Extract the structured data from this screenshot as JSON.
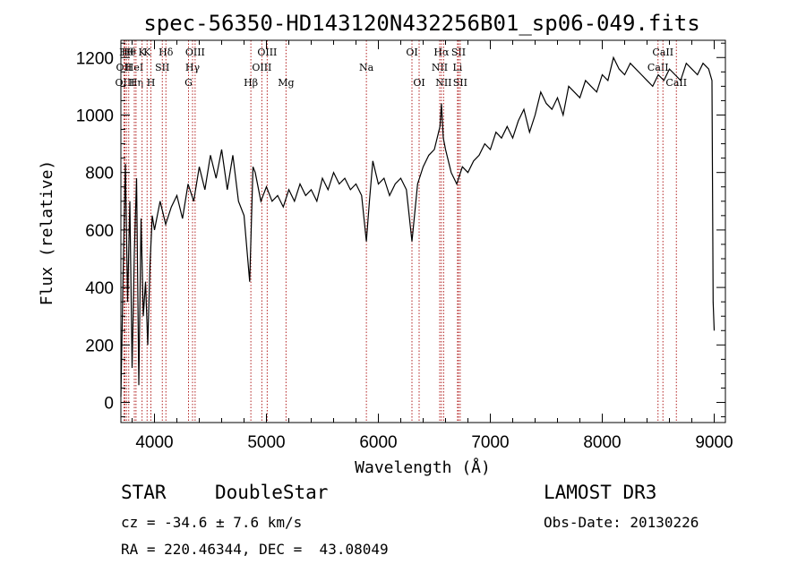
{
  "chart_data": {
    "type": "line",
    "title": "spec-56350-HD143120N432256B01_sp06-049.fits",
    "xlabel": "Wavelength (Å)",
    "ylabel": "Flux (relative)",
    "xlim": [
      3700,
      9100
    ],
    "ylim": [
      -70,
      1260
    ],
    "xticks": [
      4000,
      5000,
      6000,
      7000,
      8000,
      9000
    ],
    "yticks": [
      0,
      200,
      400,
      600,
      800,
      1000,
      1200
    ],
    "grid": false,
    "series": [
      {
        "x": [
          3700,
          3720,
          3740,
          3760,
          3780,
          3800,
          3820,
          3840,
          3860,
          3880,
          3900,
          3920,
          3940,
          3960,
          3980,
          4000,
          4050,
          4100,
          4150,
          4200,
          4250,
          4300,
          4350,
          4400,
          4450,
          4500,
          4550,
          4600,
          4650,
          4700,
          4750,
          4800,
          4850,
          4861,
          4880,
          4900,
          4950,
          5000,
          5050,
          5100,
          5150,
          5200,
          5250,
          5300,
          5350,
          5400,
          5450,
          5500,
          5550,
          5600,
          5650,
          5700,
          5750,
          5800,
          5850,
          5893,
          5920,
          5950,
          6000,
          6050,
          6100,
          6150,
          6200,
          6250,
          6300,
          6350,
          6400,
          6450,
          6500,
          6550,
          6563,
          6580,
          6600,
          6650,
          6700,
          6750,
          6800,
          6850,
          6900,
          6950,
          7000,
          7050,
          7100,
          7150,
          7200,
          7250,
          7300,
          7350,
          7400,
          7450,
          7500,
          7550,
          7600,
          7650,
          7700,
          7750,
          7800,
          7850,
          7900,
          7950,
          8000,
          8050,
          8100,
          8150,
          8200,
          8250,
          8300,
          8350,
          8400,
          8450,
          8500,
          8550,
          8600,
          8650,
          8700,
          8750,
          8800,
          8850,
          8900,
          8950,
          8980,
          8990,
          9000
        ],
        "y": [
          20,
          450,
          830,
          350,
          700,
          120,
          520,
          780,
          60,
          640,
          300,
          420,
          200,
          480,
          650,
          600,
          700,
          620,
          680,
          720,
          640,
          760,
          700,
          820,
          740,
          860,
          780,
          880,
          740,
          860,
          700,
          650,
          420,
          560,
          820,
          800,
          700,
          750,
          700,
          720,
          680,
          740,
          700,
          760,
          720,
          740,
          700,
          780,
          740,
          800,
          760,
          780,
          740,
          760,
          720,
          560,
          700,
          840,
          760,
          780,
          720,
          760,
          780,
          740,
          560,
          760,
          820,
          860,
          880,
          960,
          1040,
          920,
          880,
          800,
          760,
          820,
          800,
          840,
          860,
          900,
          880,
          940,
          920,
          960,
          920,
          980,
          1020,
          940,
          1000,
          1080,
          1040,
          1020,
          1060,
          1000,
          1100,
          1080,
          1060,
          1120,
          1100,
          1080,
          1140,
          1120,
          1200,
          1160,
          1140,
          1180,
          1160,
          1140,
          1120,
          1100,
          1140,
          1120,
          1160,
          1140,
          1120,
          1180,
          1160,
          1140,
          1180,
          1160,
          1120,
          350,
          250
        ]
      }
    ],
    "lines": [
      {
        "x": 3727,
        "row": 1,
        "label": "OII"
      },
      {
        "x": 3736,
        "row": 2,
        "label": "OIII"
      },
      {
        "x": 3750,
        "row": 0,
        "label": "Hθ"
      },
      {
        "x": 3770,
        "row": 0,
        "label": "Hθ"
      },
      {
        "x": 3820,
        "row": 1,
        "label": "HeI"
      },
      {
        "x": 3835,
        "row": 2,
        "label": "Hη"
      },
      {
        "x": 3889,
        "row": 0,
        "label": "K"
      },
      {
        "x": 3934,
        "row": 0,
        "label": "K"
      },
      {
        "x": 3968,
        "row": 2,
        "label": "H"
      },
      {
        "x": 4070,
        "row": 1,
        "label": "SII"
      },
      {
        "x": 4102,
        "row": 0,
        "label": "Hδ"
      },
      {
        "x": 4304,
        "row": 2,
        "label": "G"
      },
      {
        "x": 4340,
        "row": 1,
        "label": "Hγ"
      },
      {
        "x": 4363,
        "row": 0,
        "label": "OIII"
      },
      {
        "x": 4861,
        "row": 2,
        "label": "Hβ"
      },
      {
        "x": 4959,
        "row": 1,
        "label": "OIII"
      },
      {
        "x": 5007,
        "row": 0,
        "label": "OIII"
      },
      {
        "x": 5175,
        "row": 2,
        "label": "Mg"
      },
      {
        "x": 5893,
        "row": 1,
        "label": "Na"
      },
      {
        "x": 6300,
        "row": 0,
        "label": "OI"
      },
      {
        "x": 6364,
        "row": 2,
        "label": "OI"
      },
      {
        "x": 6548,
        "row": 1,
        "label": "NII"
      },
      {
        "x": 6563,
        "row": 0,
        "label": "Hα"
      },
      {
        "x": 6583,
        "row": 2,
        "label": "NII"
      },
      {
        "x": 6707,
        "row": 1,
        "label": "Li"
      },
      {
        "x": 6716,
        "row": 0,
        "label": "SII"
      },
      {
        "x": 6731,
        "row": 2,
        "label": "SII"
      },
      {
        "x": 8498,
        "row": 1,
        "label": "CaII"
      },
      {
        "x": 8542,
        "row": 0,
        "label": "CaII"
      },
      {
        "x": 8662,
        "row": 2,
        "label": "CaII"
      }
    ]
  },
  "info": {
    "class": "STAR",
    "subclass": "DoubleStar",
    "survey": "LAMOST DR3",
    "cz": "cz = -34.6 ± 7.6 km/s",
    "obs_date": "Obs-Date: 20130226",
    "coords": "RA = 220.46344, DEC =  43.08049"
  }
}
